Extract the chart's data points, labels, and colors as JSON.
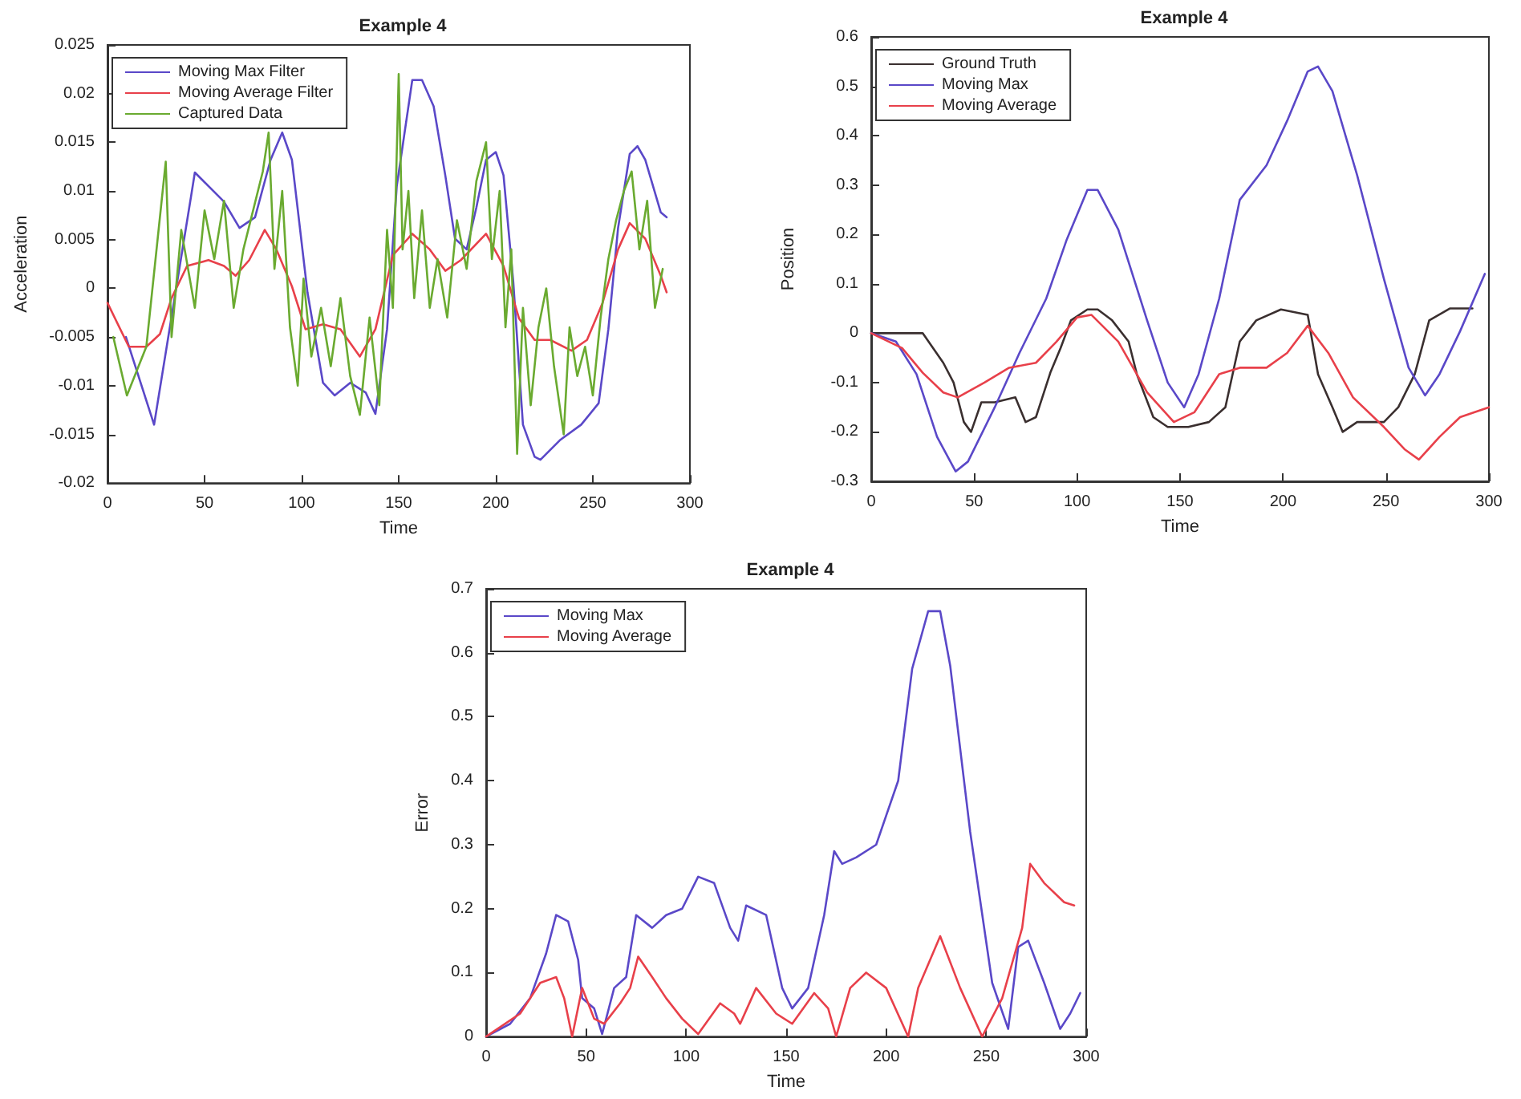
{
  "chart_data": [
    {
      "type": "line",
      "title": "Example 4",
      "xlabel": "Time",
      "ylabel": "Acceleration",
      "xlim": [
        0,
        300
      ],
      "xticks": [
        0,
        50,
        100,
        150,
        200,
        250,
        300
      ],
      "ylim": [
        -0.02,
        0.025
      ],
      "yticks": [
        -0.02,
        -0.015,
        -0.01,
        -0.005,
        0,
        0.005,
        0.01,
        0.015,
        0.02,
        0.025
      ],
      "legend": "top left",
      "grid": false,
      "marker": "none",
      "line_style": "solid",
      "series": [
        {
          "name": "Moving Max Filter",
          "color": "#5a48c8",
          "x": [
            9.5,
            24,
            43,
            45,
            60,
            68,
            76,
            84,
            90,
            95,
            103,
            111,
            117,
            125,
            133,
            138,
            144,
            149,
            157,
            162,
            168,
            174,
            179,
            185,
            190,
            195,
            200,
            204,
            209,
            214,
            220,
            223,
            233,
            244,
            253,
            258,
            263,
            269,
            273,
            277,
            285,
            288
          ],
          "values": [
            -0.005,
            -0.014,
            0.0094,
            0.0119,
            0.0089,
            0.0062,
            0.0073,
            0.0132,
            0.016,
            0.0132,
            -0.0004,
            -0.0097,
            -0.011,
            -0.0097,
            -0.0107,
            -0.0129,
            -0.0042,
            0.0105,
            0.0214,
            0.0214,
            0.0187,
            0.0116,
            0.0051,
            0.004,
            0.0083,
            0.0132,
            0.014,
            0.0116,
            0.0007,
            -0.014,
            -0.0173,
            -0.0176,
            -0.0156,
            -0.014,
            -0.0118,
            -0.0042,
            0.0062,
            0.0138,
            0.0146,
            0.0132,
            0.0078,
            0.0073
          ]
        },
        {
          "name": "Moving Average Filter",
          "color": "#e8404a",
          "x": [
            0,
            11,
            20,
            27,
            33,
            41,
            52,
            60,
            66,
            73,
            81,
            87,
            95,
            102,
            111,
            120,
            130,
            138,
            147,
            157,
            166,
            174,
            182,
            195,
            204,
            212,
            220,
            228,
            239,
            247,
            255,
            263,
            269,
            277,
            285,
            288
          ],
          "values": [
            -0.0015,
            -0.006,
            -0.006,
            -0.0047,
            -0.001,
            0.0023,
            0.0029,
            0.0023,
            0.0013,
            0.0029,
            0.006,
            0.004,
            0.0002,
            -0.0042,
            -0.0037,
            -0.0042,
            -0.007,
            -0.0042,
            0.0034,
            0.0056,
            0.004,
            0.0018,
            0.0029,
            0.0056,
            0.0023,
            -0.0031,
            -0.0053,
            -0.0053,
            -0.0064,
            -0.0053,
            -0.0015,
            0.004,
            0.0067,
            0.0051,
            0.0013,
            -0.0004
          ]
        },
        {
          "name": "Captured Data",
          "color": "#6aaa30",
          "x": [
            3,
            10,
            20,
            30,
            33,
            38,
            45,
            50,
            55,
            60,
            65,
            70,
            75,
            80,
            83,
            86,
            90,
            94,
            98,
            101,
            105,
            110,
            115,
            120,
            125,
            130,
            135,
            140,
            144,
            147,
            150,
            152,
            155,
            158,
            162,
            166,
            170,
            175,
            180,
            185,
            190,
            195,
            198,
            202,
            205,
            208,
            211,
            214,
            218,
            222,
            226,
            230,
            235,
            238,
            242,
            246,
            250,
            254,
            258,
            262,
            266,
            270,
            274,
            278,
            282,
            286
          ],
          "values": [
            -0.005,
            -0.011,
            -0.006,
            0.013,
            -0.005,
            0.006,
            -0.002,
            0.008,
            0.003,
            0.009,
            -0.002,
            0.004,
            0.008,
            0.012,
            0.016,
            0.002,
            0.01,
            -0.004,
            -0.01,
            0.001,
            -0.007,
            -0.002,
            -0.008,
            -0.001,
            -0.009,
            -0.013,
            -0.003,
            -0.012,
            0.006,
            -0.002,
            0.022,
            0.004,
            0.01,
            -0.001,
            0.008,
            -0.002,
            0.003,
            -0.003,
            0.007,
            0.002,
            0.011,
            0.015,
            0.003,
            0.01,
            -0.004,
            0.004,
            -0.017,
            -0.002,
            -0.012,
            -0.004,
            0,
            -0.008,
            -0.015,
            -0.004,
            -0.009,
            -0.006,
            -0.011,
            -0.003,
            0.003,
            0.007,
            0.01,
            0.012,
            0.004,
            0.009,
            -0.002,
            0.002
          ]
        }
      ]
    },
    {
      "type": "line",
      "title": "Example 4",
      "xlabel": "Time",
      "ylabel": "Position",
      "xlim": [
        0,
        300
      ],
      "xticks": [
        0,
        50,
        100,
        150,
        200,
        250,
        300
      ],
      "ylim": [
        -0.3,
        0.6
      ],
      "yticks": [
        -0.3,
        -0.2,
        -0.1,
        0,
        0.1,
        0.2,
        0.3,
        0.4,
        0.5,
        0.6
      ],
      "legend": "top left",
      "grid": false,
      "marker": "none",
      "line_style": "solid",
      "series": [
        {
          "name": "Ground Truth",
          "color": "#3a2f2f",
          "x": [
            0,
            25,
            35,
            40,
            45,
            48.5,
            53.5,
            60,
            70,
            75,
            80,
            87,
            92,
            97,
            105,
            110,
            117,
            125,
            129,
            137,
            144,
            154,
            164,
            172,
            179,
            187,
            199,
            212,
            217,
            224,
            229,
            236,
            249,
            256,
            264,
            271,
            281,
            292
          ],
          "values": [
            0,
            0,
            -0.06,
            -0.1,
            -0.18,
            -0.2,
            -0.14,
            -0.14,
            -0.13,
            -0.18,
            -0.17,
            -0.08,
            -0.03,
            0.026,
            0.048,
            0.048,
            0.026,
            -0.017,
            -0.083,
            -0.17,
            -0.19,
            -0.19,
            -0.18,
            -0.15,
            -0.017,
            0.026,
            0.048,
            0.037,
            -0.083,
            -0.15,
            -0.2,
            -0.18,
            -0.18,
            -0.15,
            -0.083,
            0.026,
            0.05,
            0.05
          ]
        },
        {
          "name": "Moving Max",
          "color": "#5a48c8",
          "x": [
            0,
            12,
            22,
            32,
            41,
            47,
            60,
            72,
            85,
            95,
            105,
            110,
            120,
            134,
            144,
            152,
            159,
            169,
            179,
            192,
            202,
            212,
            217,
            224,
            236,
            249,
            261,
            269,
            276,
            286,
            298
          ],
          "values": [
            0,
            -0.017,
            -0.083,
            -0.21,
            -0.28,
            -0.26,
            -0.15,
            -0.04,
            0.07,
            0.19,
            0.29,
            0.29,
            0.21,
            0.026,
            -0.1,
            -0.15,
            -0.083,
            0.07,
            0.27,
            0.34,
            0.43,
            0.53,
            0.54,
            0.49,
            0.32,
            0.11,
            -0.07,
            -0.126,
            -0.083,
            0.004,
            0.12
          ]
        },
        {
          "name": "Moving Average",
          "color": "#e8404a",
          "x": [
            0,
            15,
            25,
            35,
            42,
            55,
            67,
            80,
            90,
            100,
            107,
            120,
            134,
            147,
            157,
            169,
            179,
            192,
            202,
            212,
            222,
            234,
            249,
            259,
            266,
            276,
            286,
            300
          ],
          "values": [
            0,
            -0.03,
            -0.08,
            -0.12,
            -0.13,
            -0.1,
            -0.07,
            -0.06,
            -0.017,
            0.032,
            0.037,
            -0.017,
            -0.12,
            -0.18,
            -0.16,
            -0.083,
            -0.07,
            -0.07,
            -0.04,
            0.015,
            -0.04,
            -0.13,
            -0.19,
            -0.235,
            -0.256,
            -0.21,
            -0.17,
            -0.15
          ]
        }
      ]
    },
    {
      "type": "line",
      "title": "Example 4",
      "xlabel": "Time",
      "ylabel": "Error",
      "xlim": [
        0,
        300
      ],
      "xticks": [
        0,
        50,
        100,
        150,
        200,
        250,
        300
      ],
      "ylim": [
        0,
        0.7
      ],
      "yticks": [
        0,
        0.1,
        0.2,
        0.3,
        0.4,
        0.5,
        0.6,
        0.7
      ],
      "legend": "top left",
      "grid": false,
      "marker": "none",
      "line_style": "solid",
      "series": [
        {
          "name": "Moving Max",
          "color": "#5a48c8",
          "x": [
            0,
            12,
            22,
            30,
            35,
            41,
            46,
            48,
            54,
            58,
            64,
            70,
            75,
            83,
            90,
            98,
            106,
            114,
            122,
            126,
            130,
            140,
            148,
            153,
            161,
            169,
            174,
            178,
            185,
            195,
            206,
            213,
            221,
            227,
            232,
            242,
            253,
            261,
            266,
            271,
            279,
            287,
            292,
            297
          ],
          "values": [
            0,
            0.02,
            0.06,
            0.13,
            0.19,
            0.18,
            0.12,
            0.06,
            0.044,
            0.004,
            0.076,
            0.093,
            0.19,
            0.17,
            0.19,
            0.2,
            0.25,
            0.24,
            0.17,
            0.15,
            0.205,
            0.19,
            0.076,
            0.044,
            0.076,
            0.19,
            0.29,
            0.27,
            0.28,
            0.3,
            0.4,
            0.575,
            0.665,
            0.665,
            0.58,
            0.32,
            0.084,
            0.012,
            0.14,
            0.15,
            0.084,
            0.012,
            0.036,
            0.068
          ]
        },
        {
          "name": "Moving Average",
          "color": "#e8404a",
          "x": [
            0,
            17,
            27,
            35,
            39,
            43,
            48,
            54,
            59,
            67,
            72,
            76,
            83,
            90,
            98,
            106,
            117,
            124,
            127,
            135,
            145,
            153,
            164,
            171,
            175,
            182,
            190,
            200,
            211,
            216,
            227,
            237,
            248,
            258,
            268,
            272,
            279,
            289,
            294
          ],
          "values": [
            0,
            0.036,
            0.084,
            0.093,
            0.06,
            0,
            0.076,
            0.028,
            0.02,
            0.052,
            0.076,
            0.125,
            0.093,
            0.06,
            0.028,
            0.004,
            0.052,
            0.036,
            0.02,
            0.076,
            0.036,
            0.02,
            0.068,
            0.044,
            0,
            0.076,
            0.1,
            0.076,
            0,
            0.076,
            0.157,
            0.076,
            0,
            0.06,
            0.17,
            0.27,
            0.24,
            0.21,
            0.205
          ]
        }
      ]
    }
  ]
}
